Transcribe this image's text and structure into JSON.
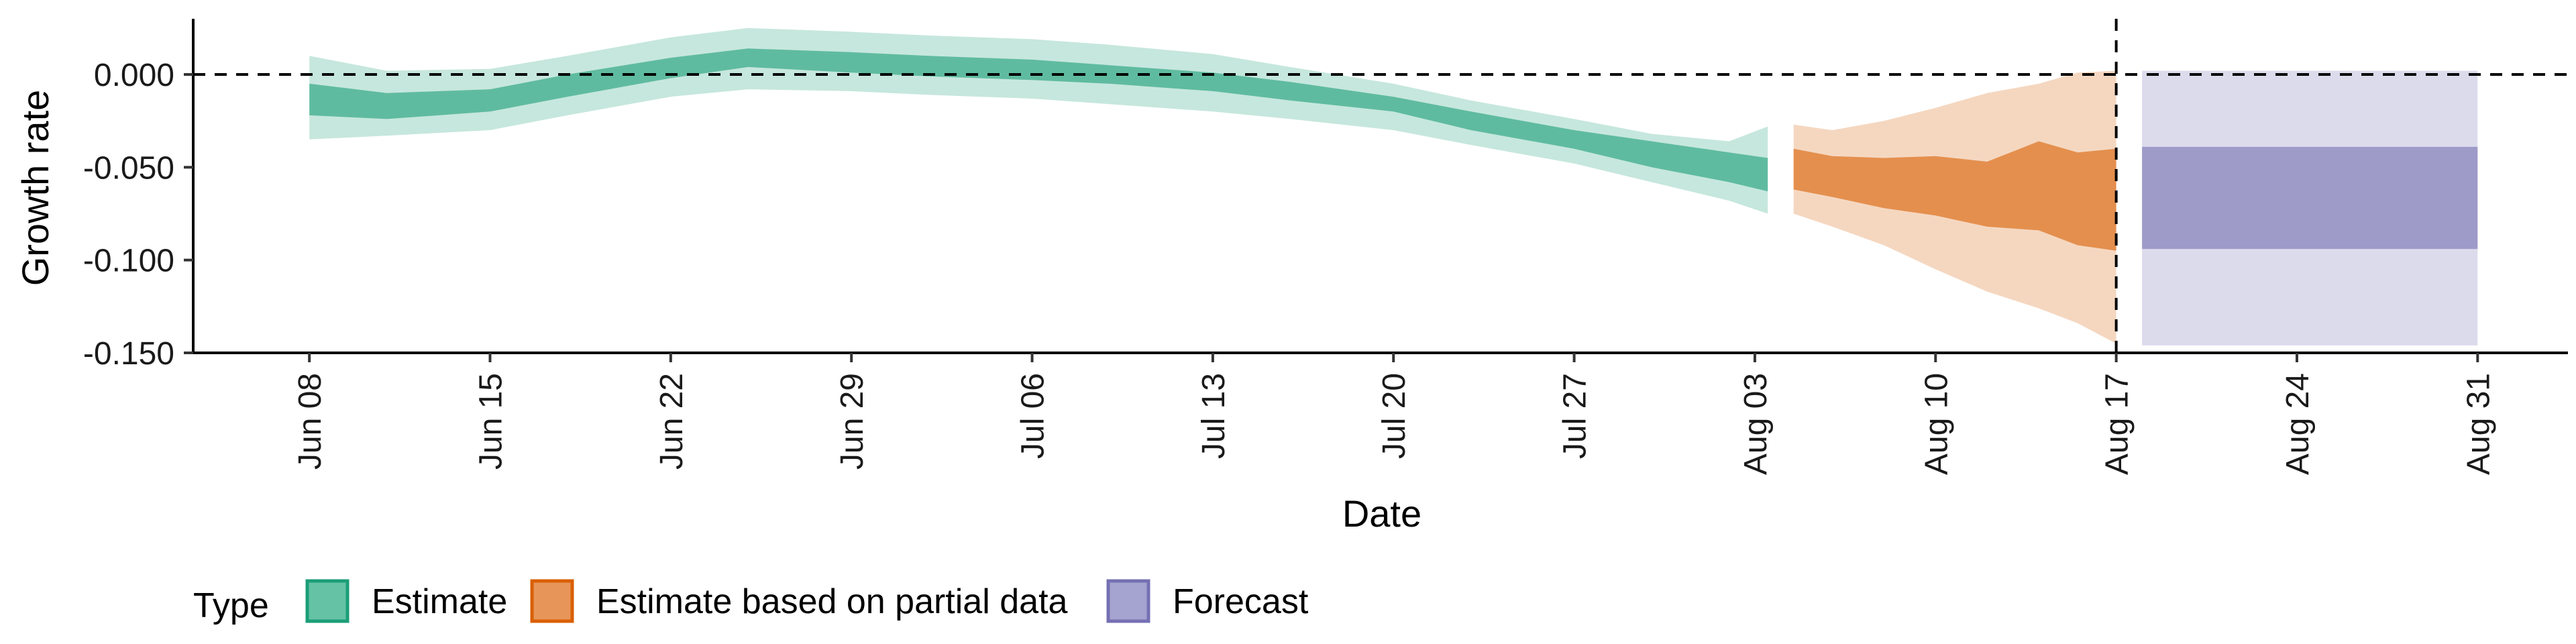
{
  "chart_data": {
    "type": "area",
    "xlabel": "Date",
    "ylabel": "Growth rate",
    "ylim": [
      -0.15,
      0.03
    ],
    "yticks": [
      0.0,
      -0.05,
      -0.1,
      -0.15
    ],
    "ytick_labels": [
      "0.000",
      "-0.050",
      "-0.100",
      "-0.150"
    ],
    "xlim_days": [
      -4.5,
      87.5
    ],
    "xticks_days": [
      0,
      7,
      14,
      21,
      28,
      35,
      42,
      49,
      56,
      63,
      70,
      77,
      84
    ],
    "xtick_labels": [
      "Jun 08",
      "Jun 15",
      "Jun 22",
      "Jun 29",
      "Jul 06",
      "Jul 13",
      "Jul 20",
      "Jul 27",
      "Aug 03",
      "Aug 10",
      "Aug 17",
      "Aug 24",
      "Aug 31"
    ],
    "x_origin_date": "Jun 08",
    "reference_hline": 0.0,
    "reference_vline_day": 70,
    "legend": {
      "title": "Type",
      "placement": "bottom-left",
      "entries": [
        {
          "label": "Estimate",
          "fill": "#66c2a5",
          "stroke": "#1b9e77"
        },
        {
          "label": "Estimate based on partial data",
          "fill": "#e8955a",
          "stroke": "#d95f02"
        },
        {
          "label": "Forecast",
          "fill": "#a5a3cf",
          "stroke": "#7570b3"
        }
      ]
    },
    "series": [
      {
        "name": "Estimate",
        "color": "#1b9e77",
        "x": [
          0,
          3,
          7,
          10,
          14,
          17,
          21,
          24,
          28,
          31,
          35,
          38,
          42,
          45,
          49,
          52,
          55,
          56.5
        ],
        "lower90": [
          -0.035,
          -0.033,
          -0.03,
          -0.022,
          -0.012,
          -0.008,
          -0.009,
          -0.011,
          -0.013,
          -0.016,
          -0.02,
          -0.024,
          -0.03,
          -0.038,
          -0.048,
          -0.058,
          -0.068,
          -0.075
        ],
        "lower50": [
          -0.022,
          -0.024,
          -0.02,
          -0.012,
          -0.002,
          0.004,
          0.001,
          -0.001,
          -0.003,
          -0.005,
          -0.009,
          -0.014,
          -0.02,
          -0.03,
          -0.04,
          -0.05,
          -0.058,
          -0.063
        ],
        "upper50": [
          -0.005,
          -0.01,
          -0.008,
          0.0,
          0.009,
          0.014,
          0.012,
          0.01,
          0.008,
          0.005,
          0.001,
          -0.004,
          -0.012,
          -0.02,
          -0.03,
          -0.036,
          -0.042,
          -0.045
        ],
        "upper90": [
          0.01,
          0.002,
          0.003,
          0.01,
          0.02,
          0.025,
          0.023,
          0.021,
          0.019,
          0.016,
          0.011,
          0.004,
          -0.005,
          -0.014,
          -0.024,
          -0.032,
          -0.036,
          -0.028
        ]
      },
      {
        "name": "Estimate based on partial data",
        "color": "#d95f02",
        "x": [
          57.5,
          59,
          61,
          63,
          65,
          67,
          68.5,
          70
        ],
        "lower90": [
          -0.075,
          -0.082,
          -0.092,
          -0.105,
          -0.117,
          -0.126,
          -0.134,
          -0.145
        ],
        "lower50": [
          -0.062,
          -0.066,
          -0.072,
          -0.076,
          -0.082,
          -0.084,
          -0.092,
          -0.095
        ],
        "upper50": [
          -0.04,
          -0.044,
          -0.045,
          -0.044,
          -0.047,
          -0.036,
          -0.042,
          -0.04
        ],
        "upper90": [
          -0.027,
          -0.03,
          -0.025,
          -0.018,
          -0.01,
          -0.005,
          0.001,
          0.002
        ]
      },
      {
        "name": "Forecast",
        "color": "#7570b3",
        "x": [
          71,
          84
        ],
        "lower90": [
          -0.146,
          -0.146
        ],
        "lower50": [
          -0.094,
          -0.094
        ],
        "upper50": [
          -0.039,
          -0.039
        ],
        "upper90": [
          0.002,
          0.002
        ]
      }
    ]
  }
}
